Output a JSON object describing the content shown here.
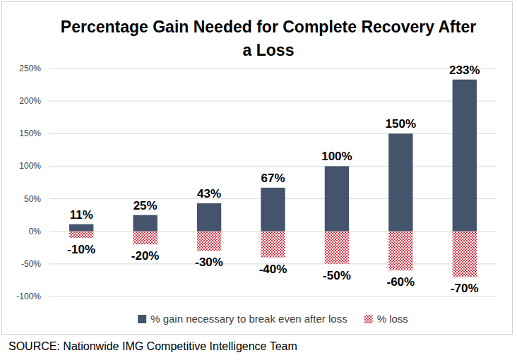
{
  "chart_data": {
    "type": "bar",
    "title": "Percentage Gain Needed for Complete Recovery After a Loss",
    "categories": [
      null,
      null,
      null,
      null,
      null,
      null,
      null
    ],
    "series": [
      {
        "name": "% gain necessary to break even after loss",
        "color": "#44546a",
        "values": [
          11,
          25,
          43,
          67,
          100,
          150,
          233
        ],
        "value_labels": [
          "11%",
          "25%",
          "43%",
          "67%",
          "100%",
          "150%",
          "233%"
        ]
      },
      {
        "name": "% loss",
        "color": "#d9404f",
        "values": [
          -10,
          -20,
          -30,
          -40,
          -50,
          -60,
          -70
        ],
        "value_labels": [
          "-10%",
          "-20%",
          "-30%",
          "-40%",
          "-50%",
          "-60%",
          "-70%"
        ]
      }
    ],
    "ylim": [
      -100,
      250
    ],
    "yticks": [
      {
        "value": -100,
        "label": "-100%"
      },
      {
        "value": -50,
        "label": "-50%"
      },
      {
        "value": 0,
        "label": "0%"
      },
      {
        "value": 50,
        "label": "50%"
      },
      {
        "value": 100,
        "label": "100%"
      },
      {
        "value": 150,
        "label": "150%"
      },
      {
        "value": 200,
        "label": "200%"
      },
      {
        "value": 250,
        "label": "250%"
      }
    ],
    "grid": true,
    "stacked": true,
    "data_labels": true,
    "legend": "bottom",
    "annotations": [
      "SOURCE: Nationwide IMG Competitive Intelligence Team"
    ]
  }
}
